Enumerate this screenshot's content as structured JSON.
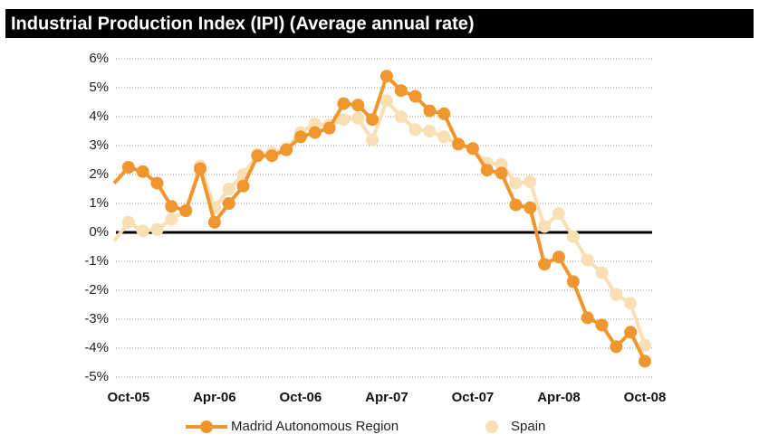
{
  "chart_data": {
    "type": "line",
    "title": "Industrial Production Index (IPI) (Average annual rate)",
    "categories": [
      null,
      "Oct-05",
      null,
      null,
      null,
      null,
      null,
      "Apr-06",
      null,
      null,
      null,
      null,
      null,
      "Oct-06",
      null,
      null,
      null,
      null,
      null,
      "Apr-07",
      null,
      null,
      null,
      null,
      null,
      "Oct-07",
      null,
      null,
      null,
      null,
      null,
      "Apr-08",
      null,
      null,
      null,
      null,
      null,
      "Oct-08"
    ],
    "series": [
      {
        "name": "Madrid Autonomous Region",
        "color": "#f0962e",
        "values": [
          1.7,
          2.25,
          2.1,
          1.7,
          0.9,
          0.75,
          2.2,
          0.35,
          1.0,
          1.6,
          2.65,
          2.65,
          2.85,
          3.3,
          3.45,
          3.6,
          4.45,
          4.4,
          3.9,
          5.4,
          4.9,
          4.7,
          4.2,
          4.1,
          3.05,
          2.9,
          2.15,
          2.05,
          0.95,
          0.85,
          -1.1,
          -0.85,
          -1.7,
          -2.95,
          -3.2,
          -3.95,
          -3.45,
          -4.45
        ]
      },
      {
        "name": "Spain",
        "color": "#f9dfb4",
        "values": [
          -0.3,
          0.35,
          0.05,
          0.1,
          0.45,
          0.75,
          2.3,
          0.85,
          1.5,
          2.0,
          2.7,
          2.75,
          2.9,
          3.45,
          3.75,
          3.7,
          3.9,
          3.95,
          3.2,
          4.55,
          4.0,
          3.55,
          3.5,
          3.3,
          3.05,
          2.9,
          2.4,
          2.35,
          1.7,
          1.75,
          0.2,
          0.65,
          -0.15,
          -0.95,
          -1.4,
          -2.15,
          -2.45,
          -3.9
        ]
      }
    ],
    "ylim": [
      -5,
      6
    ],
    "yticks": [
      {
        "value": 6,
        "label": "6%"
      },
      {
        "value": 5,
        "label": "5%"
      },
      {
        "value": 4,
        "label": "4%"
      },
      {
        "value": 3,
        "label": "3%"
      },
      {
        "value": 2,
        "label": "2%"
      },
      {
        "value": 1,
        "label": "1%"
      },
      {
        "value": 0,
        "label": "0%"
      },
      {
        "value": -1,
        "label": "-1%"
      },
      {
        "value": -2,
        "label": "-2%"
      },
      {
        "value": -3,
        "label": "-3%"
      },
      {
        "value": -4,
        "label": "-4%"
      },
      {
        "value": -5,
        "label": "-5%"
      }
    ],
    "grid": true
  }
}
